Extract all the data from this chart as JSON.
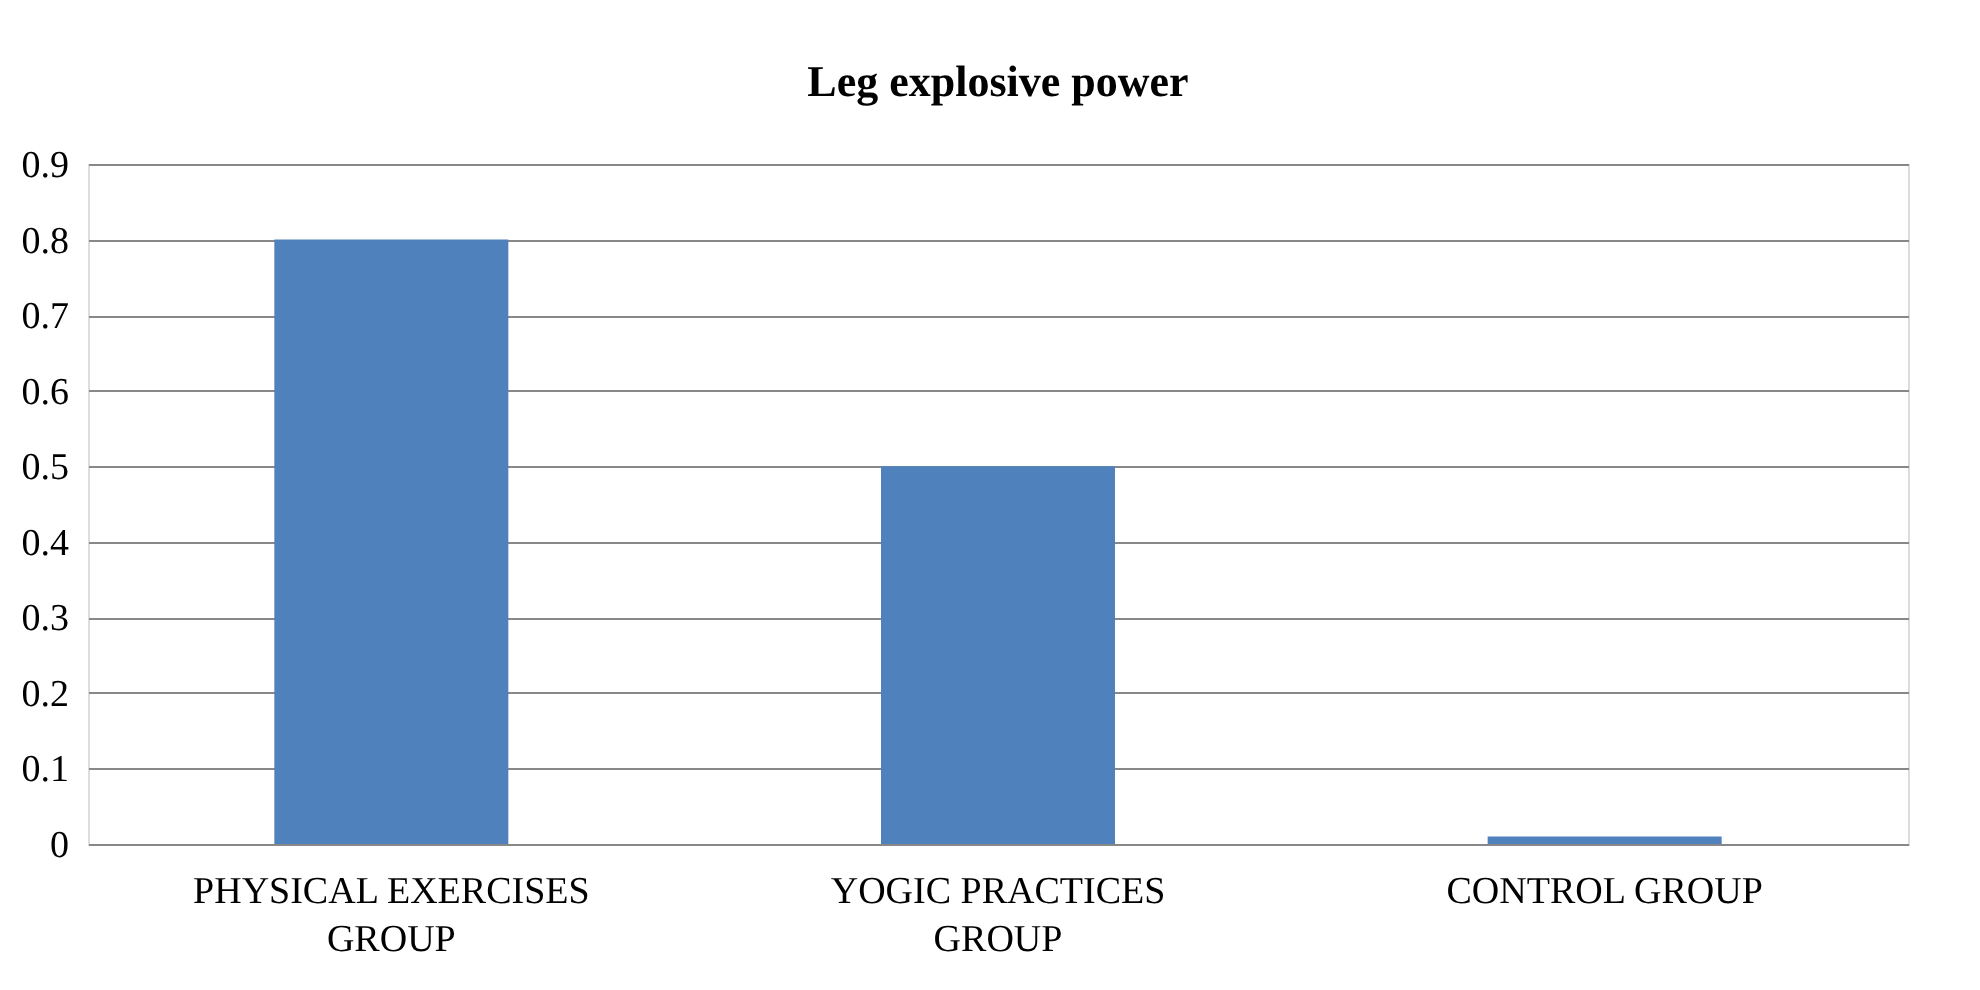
{
  "chart_data": {
    "type": "bar",
    "title": "Leg explosive power",
    "categories": [
      "PHYSICAL EXERCISES GROUP",
      "YOGIC PRACTICES GROUP",
      "CONTROL GROUP"
    ],
    "values": [
      0.8,
      0.5,
      0.01
    ],
    "color": "#4f81bd",
    "ylim": [
      0,
      0.9
    ],
    "yticks": [
      0,
      0.1,
      0.2,
      0.3,
      0.4,
      0.5,
      0.6,
      0.7,
      0.8,
      0.9
    ],
    "grid": "y"
  }
}
